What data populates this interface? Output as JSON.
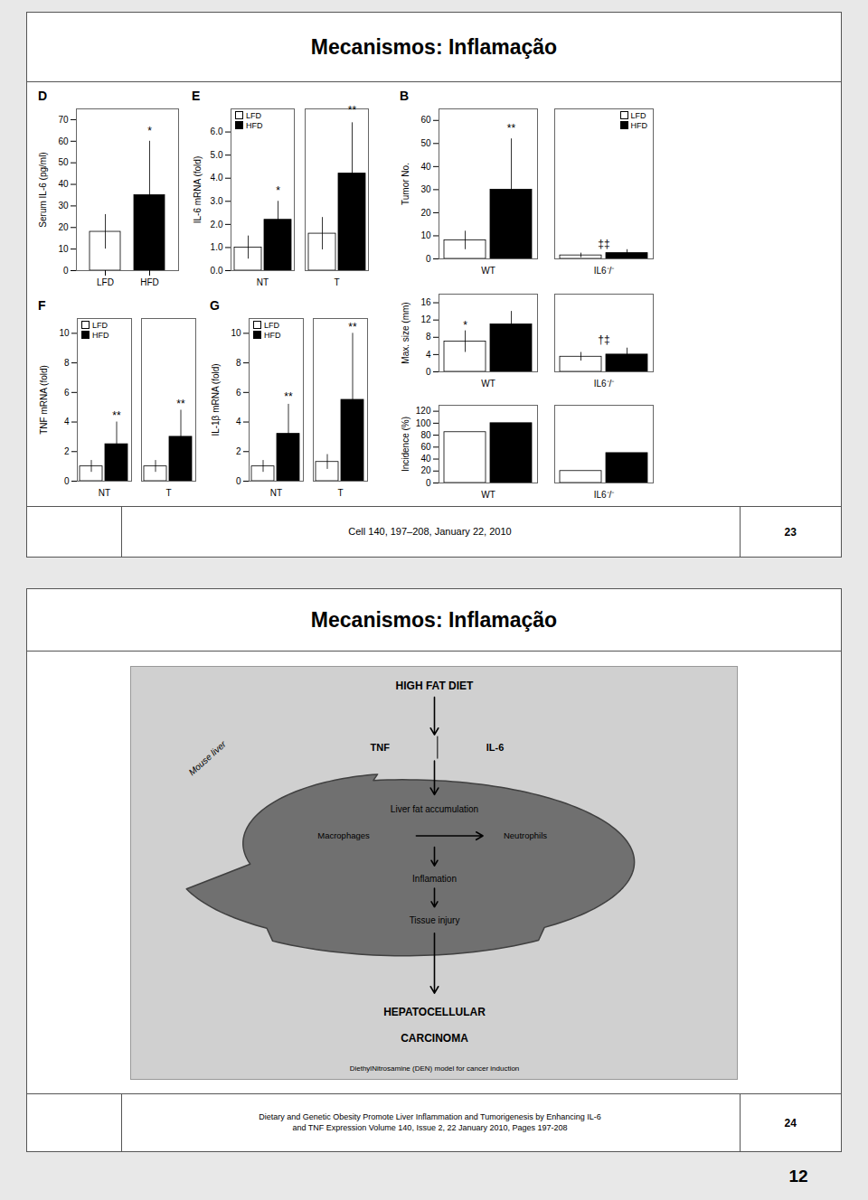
{
  "slides": [
    {
      "title": "Mecanismos: Inflamação",
      "footer": "Cell 140, 197–208, January 22, 2010",
      "page": "23"
    },
    {
      "title": "Mecanismos: Inflamação",
      "footer": "Dietary and Genetic Obesity Promote Liver Inflammation and Tumorigenesis by Enhancing IL-6\nand TNF Expression Volume 140, Issue 2, 22 January 2010, Pages 197-208",
      "page": "24"
    }
  ],
  "page_number": "12",
  "colors": {
    "background": "#e8e8e8",
    "slide": "#ffffff",
    "border": "#555555",
    "diagram": "#d0d0d0",
    "liver": "#707070"
  },
  "chart_data": [
    {
      "type": "bar",
      "title": "D",
      "ylabel": "Serum IL-6 (pg/ml)",
      "categories": [
        "LFD",
        "HFD"
      ],
      "values": [
        18,
        35
      ],
      "errors": [
        8,
        25
      ],
      "colors": [
        "#ffffff",
        "#000000"
      ],
      "ylim": [
        0,
        75
      ],
      "yticks": [
        0,
        10,
        20,
        30,
        40,
        50,
        60,
        70
      ],
      "annotations": [
        {
          "text": "*",
          "category": "HFD",
          "y": 63
        }
      ]
    },
    {
      "type": "bar",
      "title": "E",
      "ylabel": "IL-6 mRNA (fold)",
      "categories": [
        "NT",
        "T"
      ],
      "series": [
        {
          "name": "LFD",
          "color": "#ffffff",
          "values": [
            1.0,
            1.6
          ],
          "errors": [
            0.5,
            0.7
          ]
        },
        {
          "name": "HFD",
          "color": "#000000",
          "values": [
            2.2,
            4.2
          ],
          "errors": [
            0.8,
            2.2
          ]
        }
      ],
      "ylim": [
        0,
        7
      ],
      "yticks": [
        0,
        1,
        2,
        3,
        4,
        5,
        6
      ],
      "legend": "upper left",
      "annotations": [
        {
          "text": "*",
          "category": "NT",
          "series": "HFD",
          "y": 3.3
        },
        {
          "text": "**",
          "category": "T",
          "series": "HFD",
          "y": 6.8
        }
      ]
    },
    {
      "type": "bar",
      "title": "B",
      "ylabel": "Tumor No.",
      "categories": [
        "WT",
        "IL6⁻/⁻"
      ],
      "series": [
        {
          "name": "LFD",
          "color": "#ffffff",
          "values": [
            8,
            1.5
          ],
          "errors": [
            4,
            1
          ]
        },
        {
          "name": "HFD",
          "color": "#000000",
          "values": [
            30,
            2.5
          ],
          "errors": [
            22,
            1.5
          ]
        }
      ],
      "ylim": [
        0,
        65
      ],
      "yticks": [
        0,
        10,
        20,
        30,
        40,
        50,
        60
      ],
      "legend": "upper right",
      "annotations": [
        {
          "text": "**",
          "category": "WT",
          "series": "HFD",
          "y": 55
        },
        {
          "text": "‡‡",
          "category": "IL6⁻/⁻",
          "y": 5
        }
      ]
    },
    {
      "type": "bar",
      "ylabel": "Max. size (mm)",
      "categories": [
        "WT",
        "IL6⁻/⁻"
      ],
      "series": [
        {
          "name": "LFD",
          "color": "#ffffff",
          "values": [
            7,
            3.5
          ],
          "errors": [
            2.5,
            1
          ]
        },
        {
          "name": "HFD",
          "color": "#000000",
          "values": [
            11,
            4.0
          ],
          "errors": [
            3,
            1.5
          ]
        }
      ],
      "ylim": [
        0,
        18
      ],
      "yticks": [
        0,
        4,
        8,
        12,
        16
      ],
      "annotations": [
        {
          "text": "*",
          "category": "WT",
          "series": "LFD",
          "y": 10
        },
        {
          "text": "†‡",
          "category": "IL6⁻/⁻",
          "y": 6.5
        }
      ]
    },
    {
      "type": "bar",
      "ylabel": "Incidence (%)",
      "categories": [
        "WT",
        "IL6⁻/⁻"
      ],
      "series": [
        {
          "name": "LFD",
          "color": "#ffffff",
          "values": [
            85,
            20
          ]
        },
        {
          "name": "HFD",
          "color": "#000000",
          "values": [
            100,
            50
          ]
        }
      ],
      "ylim": [
        0,
        130
      ],
      "yticks": [
        0,
        20,
        40,
        60,
        80,
        100,
        120
      ]
    },
    {
      "type": "bar",
      "title": "F",
      "ylabel": "TNF mRNA (fold)",
      "categories": [
        "NT",
        "T"
      ],
      "series": [
        {
          "name": "LFD",
          "color": "#ffffff",
          "values": [
            1.0,
            1.0
          ],
          "errors": [
            0.4,
            0.4
          ]
        },
        {
          "name": "HFD",
          "color": "#000000",
          "values": [
            2.5,
            3.0
          ],
          "errors": [
            1.5,
            1.8
          ]
        }
      ],
      "ylim": [
        0,
        11
      ],
      "yticks": [
        0,
        2,
        4,
        6,
        8,
        10
      ],
      "legend": "upper left",
      "annotations": [
        {
          "text": "**",
          "category": "NT",
          "series": "HFD",
          "y": 4.2
        },
        {
          "text": "**",
          "category": "T",
          "series": "HFD",
          "y": 5.0
        }
      ]
    },
    {
      "type": "bar",
      "title": "G",
      "ylabel": "IL-1β mRNA (fold)",
      "categories": [
        "NT",
        "T"
      ],
      "series": [
        {
          "name": "LFD",
          "color": "#ffffff",
          "values": [
            1.0,
            1.3
          ],
          "errors": [
            0.4,
            0.5
          ]
        },
        {
          "name": "HFD",
          "color": "#000000",
          "values": [
            3.2,
            5.5
          ],
          "errors": [
            2.0,
            4.5
          ]
        }
      ],
      "ylim": [
        0,
        11
      ],
      "yticks": [
        0,
        2,
        4,
        6,
        8,
        10
      ],
      "legend": "upper left",
      "annotations": [
        {
          "text": "**",
          "category": "NT",
          "series": "HFD",
          "y": 5.5
        },
        {
          "text": "**",
          "category": "T",
          "series": "HFD",
          "y": 10.2
        }
      ]
    }
  ],
  "diagram": {
    "texts": [
      "Mouse liver",
      "HIGH FAT DIET",
      "TNF",
      "IL-6",
      "Liver fat accumulation",
      "Macrophages",
      "Neutrophils",
      "Inflamation",
      "Tissue injury",
      "HEPATOCELLULAR",
      "CARCINOMA",
      "DiethylNitrosamine (DEN) model for cancer induction"
    ]
  }
}
